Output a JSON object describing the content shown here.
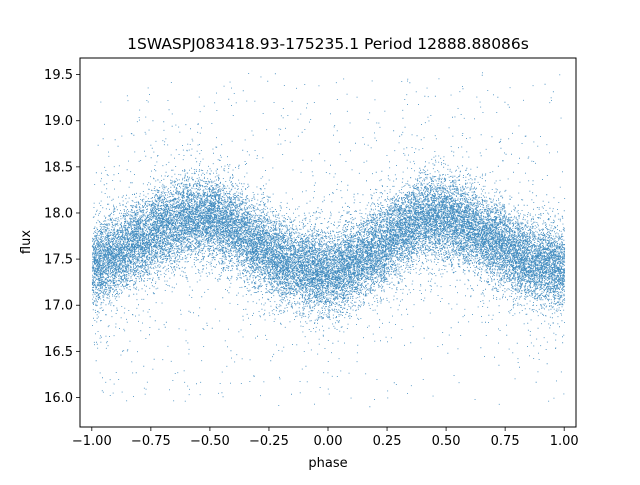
{
  "chart_data": {
    "type": "scatter",
    "title": "1SWASPJ083418.93-175235.1 Period 12888.88086s",
    "xlabel": "phase",
    "ylabel": "flux",
    "xlim": [
      -1.05,
      1.05
    ],
    "ylim": [
      15.68,
      19.68
    ],
    "xticks": [
      -1.0,
      -0.75,
      -0.5,
      -0.25,
      0.0,
      0.25,
      0.5,
      0.75,
      1.0
    ],
    "xtick_labels": [
      "−1.00",
      "−0.75",
      "−0.50",
      "−0.25",
      "0.00",
      "0.25",
      "0.50",
      "0.75",
      "1.00"
    ],
    "yticks": [
      16.0,
      16.5,
      17.0,
      17.5,
      18.0,
      18.5,
      19.0,
      19.5
    ],
    "ytick_labels": [
      "16.0",
      "16.5",
      "17.0",
      "17.5",
      "18.0",
      "18.5",
      "19.0",
      "19.5"
    ],
    "grid": false,
    "legend": "none",
    "marker_color": "#1f77b4",
    "series": [
      {
        "phase": [
          -1.0,
          -0.9,
          -0.8,
          -0.7,
          -0.6,
          -0.5,
          -0.4,
          -0.3,
          -0.2,
          -0.1,
          0.0,
          0.1,
          0.2,
          0.3,
          0.4,
          0.5,
          0.6,
          0.7,
          0.8,
          0.9,
          1.0
        ],
        "flux": [
          17.45,
          17.55,
          17.7,
          17.85,
          17.95,
          17.95,
          17.85,
          17.65,
          17.5,
          17.4,
          17.35,
          17.45,
          17.6,
          17.8,
          17.95,
          17.95,
          17.85,
          17.7,
          17.55,
          17.45,
          17.4
        ],
        "scatter_sigma": 0.22,
        "outlier_range": [
          15.9,
          19.55
        ],
        "n_points": 30000
      }
    ]
  }
}
